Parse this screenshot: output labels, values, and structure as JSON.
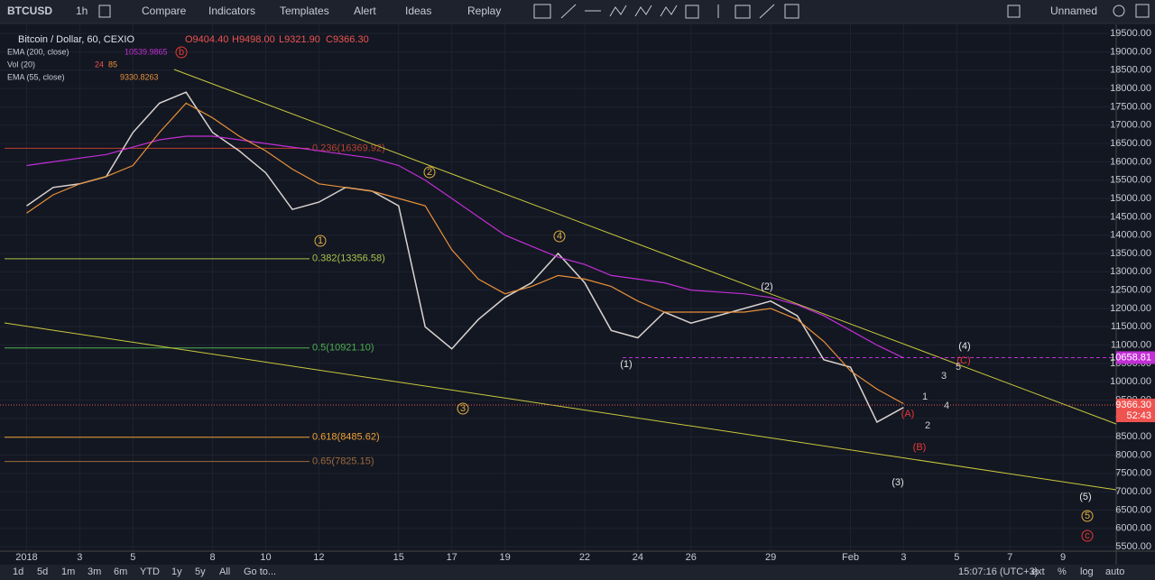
{
  "toolbar": {
    "symbol": "BTCUSD",
    "interval": "1h",
    "items": [
      "Compare",
      "Indicators",
      "Templates",
      "Alert",
      "Ideas",
      "Replay"
    ],
    "layout": "Unnamed"
  },
  "legend": {
    "ohlc": [
      "O9404.40",
      "H9498.00",
      "L9321.90",
      "C9366.30"
    ],
    "vol_name": "Vol (20)",
    "vol_values": [
      "24",
      "85"
    ],
    "ema200_value": "10539.9865",
    "ema55_value": "9330.8263"
  },
  "price_badges": {
    "ema": "10658.81",
    "last": "9366.30",
    "countdown": "52:43"
  },
  "waves": {
    "b": "b",
    "c": "c",
    "minor": [
      "1",
      "2",
      "3",
      "4",
      "5"
    ],
    "intermediate": [
      "(1)",
      "(2)",
      "(3)",
      "(4)",
      "(5)"
    ],
    "corrective": [
      "(A)",
      "(B)",
      "(C)"
    ],
    "sub": [
      "1",
      "2",
      "3",
      "4",
      "5"
    ]
  },
  "bottom_bar": {
    "ranges": [
      "1d",
      "5d",
      "1m",
      "3m",
      "6m",
      "YTD",
      "1y",
      "5y",
      "All",
      "Go to..."
    ],
    "clock": "15:07:16 (UTC+3)",
    "options": [
      "ext",
      "%",
      "log",
      "auto"
    ]
  },
  "chart_data": {
    "type": "line",
    "x": [
      "2018-01-01",
      "2018-01-02",
      "2018-01-03",
      "2018-01-04",
      "2018-01-05",
      "2018-01-06",
      "2018-01-07",
      "2018-01-08",
      "2018-01-09",
      "2018-01-10",
      "2018-01-11",
      "2018-01-12",
      "2018-01-13",
      "2018-01-14",
      "2018-01-15",
      "2018-01-16",
      "2018-01-17",
      "2018-01-18",
      "2018-01-19",
      "2018-01-20",
      "2018-01-21",
      "2018-01-22",
      "2018-01-23",
      "2018-01-24",
      "2018-01-25",
      "2018-01-26",
      "2018-01-27",
      "2018-01-28",
      "2018-01-29",
      "2018-01-30",
      "2018-01-31",
      "2018-02-01",
      "2018-02-02",
      "2018-02-03"
    ],
    "series": [
      {
        "name": "Bitcoin / Dollar, 60, CEXIO",
        "color": "#d9d3cf",
        "values": [
          14800,
          15300,
          15400,
          15600,
          16800,
          17600,
          17900,
          16800,
          16300,
          15700,
          14700,
          14900,
          15300,
          15200,
          14800,
          11500,
          10900,
          11700,
          12300,
          12700,
          13500,
          12700,
          11400,
          11200,
          11900,
          11600,
          11800,
          12000,
          12200,
          11800,
          10600,
          10400,
          8900,
          9300
        ]
      },
      {
        "name": "EMA (200, close)",
        "color": "#c22fd6",
        "values": [
          15900,
          16000,
          16100,
          16200,
          16400,
          16600,
          16700,
          16700,
          16600,
          16500,
          16400,
          16300,
          16200,
          16100,
          15900,
          15500,
          15000,
          14500,
          14000,
          13700,
          13400,
          13200,
          12900,
          12800,
          12700,
          12500,
          12450,
          12400,
          12300,
          12100,
          11800,
          11400,
          11000,
          10650
        ]
      },
      {
        "name": "EMA (55, close)",
        "color": "#e8903a",
        "values": [
          14600,
          15100,
          15400,
          15600,
          15900,
          16800,
          17600,
          17200,
          16700,
          16300,
          15800,
          15400,
          15300,
          15200,
          15000,
          14800,
          13600,
          12800,
          12400,
          12600,
          12900,
          12800,
          12600,
          12200,
          11900,
          11900,
          11900,
          11900,
          12000,
          11700,
          11100,
          10300,
          9800,
          9400
        ]
      }
    ],
    "xlim": [
      "2017-12-31",
      "2018-02-11"
    ],
    "xticks": [
      {
        "value": "2018-01-01",
        "label": "2018"
      },
      {
        "value": "2018-01-03",
        "label": "3"
      },
      {
        "value": "2018-01-05",
        "label": "5"
      },
      {
        "value": "2018-01-08",
        "label": "8"
      },
      {
        "value": "2018-01-10",
        "label": "10"
      },
      {
        "value": "2018-01-12",
        "label": "12"
      },
      {
        "value": "2018-01-15",
        "label": "15"
      },
      {
        "value": "2018-01-17",
        "label": "17"
      },
      {
        "value": "2018-01-19",
        "label": "19"
      },
      {
        "value": "2018-01-22",
        "label": "22"
      },
      {
        "value": "2018-01-24",
        "label": "24"
      },
      {
        "value": "2018-01-26",
        "label": "26"
      },
      {
        "value": "2018-01-29",
        "label": "29"
      },
      {
        "value": "2018-02-01",
        "label": "Feb"
      },
      {
        "value": "2018-02-03",
        "label": "3"
      },
      {
        "value": "2018-02-05",
        "label": "5"
      },
      {
        "value": "2018-02-07",
        "label": "7"
      },
      {
        "value": "2018-02-09",
        "label": "9"
      }
    ],
    "ylim": [
      5380,
      19750
    ],
    "yticks": [
      {
        "value": 19500,
        "label": "19500.00"
      },
      {
        "value": 19000,
        "label": "19000.00"
      },
      {
        "value": 18500,
        "label": "18500.00"
      },
      {
        "value": 18000,
        "label": "18000.00"
      },
      {
        "value": 17500,
        "label": "17500.00"
      },
      {
        "value": 17000,
        "label": "17000.00"
      },
      {
        "value": 16500,
        "label": "16500.00"
      },
      {
        "value": 16000,
        "label": "16000.00"
      },
      {
        "value": 15500,
        "label": "15500.00"
      },
      {
        "value": 15000,
        "label": "15000.00"
      },
      {
        "value": 14500,
        "label": "14500.00"
      },
      {
        "value": 14000,
        "label": "14000.00"
      },
      {
        "value": 13500,
        "label": "13500.00"
      },
      {
        "value": 13000,
        "label": "13000.00"
      },
      {
        "value": 12500,
        "label": "12500.00"
      },
      {
        "value": 12000,
        "label": "12000.00"
      },
      {
        "value": 11500,
        "label": "11500.00"
      },
      {
        "value": 11000,
        "label": "11000.00"
      },
      {
        "value": 10500,
        "label": "10500.00"
      },
      {
        "value": 10000,
        "label": "10000.00"
      },
      {
        "value": 9500,
        "label": "9500.00"
      },
      {
        "value": 9000,
        "label": "9000.00"
      },
      {
        "value": 8500,
        "label": "8500.00"
      },
      {
        "value": 8000,
        "label": "8000.00"
      },
      {
        "value": 7500,
        "label": "7500.00"
      },
      {
        "value": 7000,
        "label": "7000.00"
      },
      {
        "value": 6500,
        "label": "6500.00"
      },
      {
        "value": 6000,
        "label": "6000.00"
      },
      {
        "value": 5500,
        "label": "5500.00"
      }
    ],
    "grid": true,
    "fib_levels": [
      {
        "value": 16369.92,
        "label": "0.236(16369.92)",
        "color": "#b8432f"
      },
      {
        "value": 13356.58,
        "label": "0.382(13356.58)",
        "color": "#a6c44a"
      },
      {
        "value": 10921.1,
        "label": "0.5(10921.10)",
        "color": "#4caf50"
      },
      {
        "value": 8485.62,
        "label": "0.618(8485.62)",
        "color": "#f0a030"
      },
      {
        "value": 7825.15,
        "label": "0.65(7825.15)",
        "color": "#9c6a3c"
      }
    ]
  }
}
